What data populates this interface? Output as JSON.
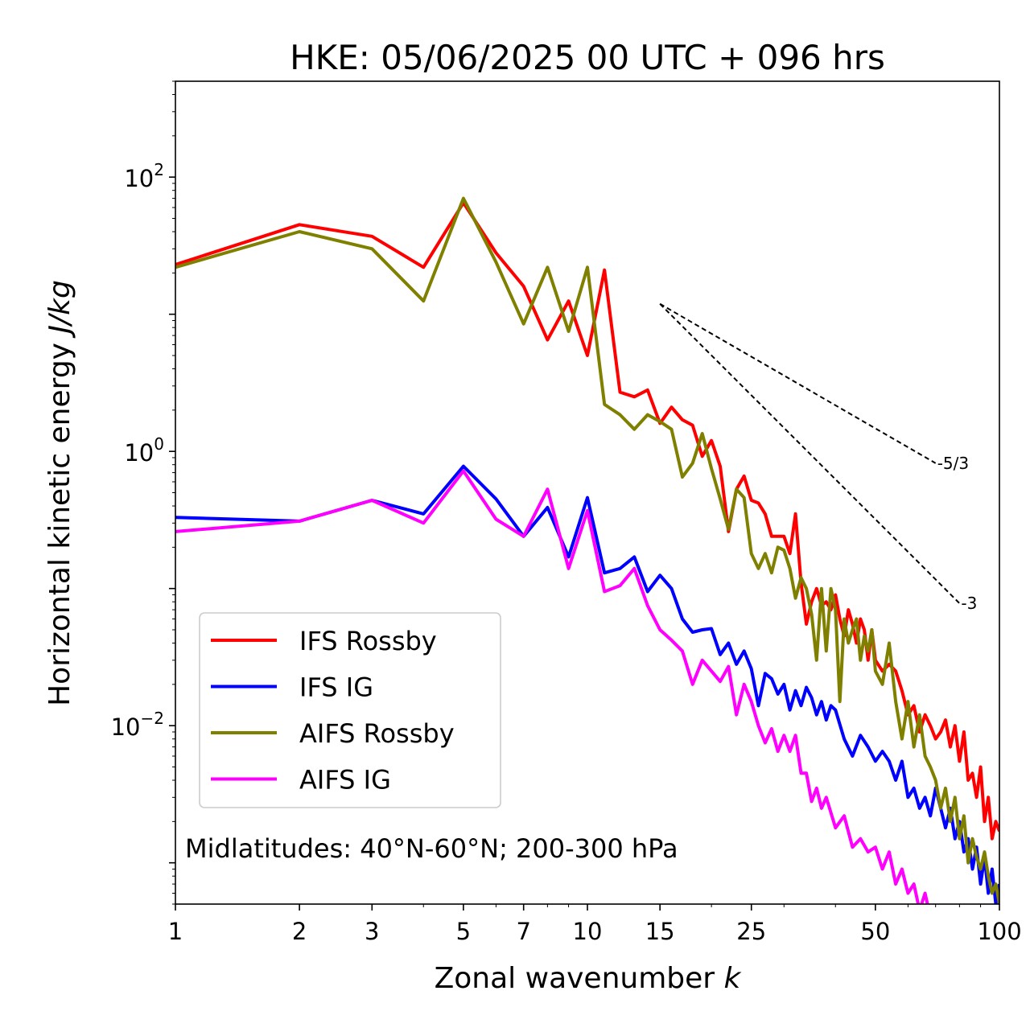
{
  "chart_data": {
    "type": "line",
    "title": "HKE: 05/06/2025 00 UTC + 096 hrs",
    "xlabel": "Zonal wavenumber",
    "xlabel_var": "k",
    "ylabel": "Horizontal kinetic energy",
    "ylabel_unit": "J/kg",
    "xscale": "log",
    "yscale": "log",
    "xlim": [
      1,
      100
    ],
    "ylim": [
      0.0005,
      500
    ],
    "x_ticks": [
      1,
      2,
      3,
      5,
      7,
      10,
      15,
      25,
      50,
      100
    ],
    "x_tick_labels": [
      "1",
      "2",
      "3",
      "5",
      "7",
      "10",
      "15",
      "25",
      "50",
      "100"
    ],
    "y_ticks": [
      100,
      1,
      0.01
    ],
    "y_tick_base": "10",
    "y_tick_exponents": [
      "2",
      "0",
      "−2"
    ],
    "grid": false,
    "legend_position": "lower-left",
    "annotation": "Midlatitudes: 40°N-60°N; 200-300 hPa",
    "reference_slopes": [
      {
        "label": "-5/3",
        "x": [
          15,
          70
        ],
        "y": [
          11.9,
          0.82
        ]
      },
      {
        "label": "-3",
        "x": [
          15,
          80
        ],
        "y": [
          11.9,
          0.078
        ]
      }
    ],
    "series": [
      {
        "name": "IFS Rossby",
        "color": "#ff0000",
        "x": [
          1,
          2,
          3,
          4,
          5,
          6,
          7,
          8,
          9,
          10,
          11,
          12,
          13,
          14,
          15,
          16,
          17,
          18,
          19,
          20,
          21,
          22,
          23,
          24,
          25,
          26,
          27,
          28,
          29,
          30,
          31,
          32,
          33,
          34,
          35,
          36,
          37,
          38,
          39,
          40,
          41,
          42,
          43,
          44,
          45,
          46,
          47,
          48,
          49,
          50,
          52,
          54,
          56,
          58,
          60,
          62,
          64,
          66,
          68,
          70,
          72,
          74,
          76,
          78,
          80,
          82,
          84,
          86,
          88,
          90,
          92,
          94,
          96,
          98,
          100
        ],
        "y": [
          23,
          45,
          37,
          22,
          65,
          28,
          16,
          6.5,
          12.5,
          5.0,
          21,
          2.7,
          2.5,
          2.8,
          1.6,
          2.1,
          1.7,
          1.55,
          0.92,
          1.2,
          0.78,
          0.26,
          0.53,
          0.66,
          0.44,
          0.42,
          0.35,
          0.24,
          0.24,
          0.24,
          0.18,
          0.35,
          0.11,
          0.055,
          0.08,
          0.1,
          0.075,
          0.08,
          0.07,
          0.09,
          0.06,
          0.045,
          0.07,
          0.055,
          0.04,
          0.06,
          0.05,
          0.03,
          0.05,
          0.03,
          0.025,
          0.028,
          0.025,
          0.018,
          0.012,
          0.014,
          0.009,
          0.012,
          0.01,
          0.008,
          0.009,
          0.011,
          0.007,
          0.01,
          0.0055,
          0.009,
          0.004,
          0.0045,
          0.003,
          0.005,
          0.002,
          0.003,
          0.0015,
          0.002,
          0.0017
        ]
      },
      {
        "name": "IFS IG",
        "color": "#0000ff",
        "x": [
          1,
          2,
          3,
          4,
          5,
          6,
          7,
          8,
          9,
          10,
          11,
          12,
          13,
          14,
          15,
          16,
          17,
          18,
          19,
          20,
          21,
          22,
          23,
          24,
          25,
          26,
          27,
          28,
          29,
          30,
          31,
          32,
          33,
          34,
          35,
          36,
          37,
          38,
          39,
          40,
          42,
          44,
          46,
          48,
          50,
          52,
          54,
          56,
          58,
          60,
          62,
          64,
          66,
          68,
          70,
          72,
          74,
          76,
          78,
          80,
          82,
          84,
          86,
          88,
          90,
          92,
          94,
          96,
          98,
          100
        ],
        "y": [
          0.33,
          0.31,
          0.44,
          0.35,
          0.78,
          0.45,
          0.24,
          0.39,
          0.17,
          0.46,
          0.13,
          0.14,
          0.17,
          0.095,
          0.125,
          0.1,
          0.06,
          0.048,
          0.05,
          0.051,
          0.033,
          0.04,
          0.028,
          0.035,
          0.026,
          0.014,
          0.024,
          0.022,
          0.017,
          0.02,
          0.013,
          0.018,
          0.014,
          0.019,
          0.016,
          0.012,
          0.015,
          0.011,
          0.014,
          0.013,
          0.008,
          0.006,
          0.0085,
          0.007,
          0.0055,
          0.0065,
          0.0055,
          0.004,
          0.0055,
          0.003,
          0.0035,
          0.0025,
          0.003,
          0.0022,
          0.0035,
          0.0025,
          0.0018,
          0.0025,
          0.0015,
          0.002,
          0.0012,
          0.0015,
          0.0009,
          0.0013,
          0.0007,
          0.0011,
          0.0006,
          0.0009,
          0.0005,
          0.0007
        ]
      },
      {
        "name": "AIFS Rossby",
        "color": "#808000",
        "x": [
          1,
          2,
          3,
          4,
          5,
          6,
          7,
          8,
          9,
          10,
          11,
          12,
          13,
          14,
          15,
          16,
          17,
          18,
          19,
          20,
          21,
          22,
          23,
          24,
          25,
          26,
          27,
          28,
          29,
          30,
          31,
          32,
          33,
          34,
          35,
          36,
          37,
          38,
          39,
          40,
          41,
          42,
          43,
          44,
          45,
          46,
          47,
          48,
          49,
          50,
          52,
          54,
          56,
          58,
          60,
          62,
          64,
          66,
          68,
          70,
          72,
          74,
          76,
          78,
          80,
          82,
          84,
          86,
          88,
          90,
          92,
          94,
          96,
          98,
          100
        ],
        "y": [
          22,
          40,
          30,
          12.5,
          70,
          24,
          8.5,
          22,
          7.5,
          22,
          2.2,
          1.85,
          1.45,
          1.85,
          1.65,
          1.45,
          0.65,
          0.82,
          1.35,
          0.75,
          0.45,
          0.27,
          0.53,
          0.46,
          0.18,
          0.14,
          0.18,
          0.13,
          0.2,
          0.19,
          0.14,
          0.085,
          0.12,
          0.1,
          0.065,
          0.03,
          0.1,
          0.035,
          0.1,
          0.07,
          0.015,
          0.06,
          0.04,
          0.05,
          0.06,
          0.03,
          0.045,
          0.035,
          0.05,
          0.025,
          0.02,
          0.04,
          0.015,
          0.008,
          0.015,
          0.007,
          0.012,
          0.006,
          0.005,
          0.004,
          0.0025,
          0.0035,
          0.002,
          0.003,
          0.0015,
          0.0022,
          0.001,
          0.0015,
          0.0011,
          0.0009,
          0.0012,
          0.0008,
          0.0006,
          0.0007,
          0.0005
        ]
      },
      {
        "name": "AIFS IG",
        "color": "#ff00ff",
        "x": [
          1,
          2,
          3,
          4,
          5,
          6,
          7,
          8,
          9,
          10,
          11,
          12,
          13,
          14,
          15,
          16,
          17,
          18,
          19,
          20,
          21,
          22,
          23,
          24,
          25,
          26,
          27,
          28,
          29,
          30,
          31,
          32,
          33,
          34,
          35,
          36,
          37,
          38,
          40,
          42,
          44,
          46,
          48,
          50,
          52,
          54,
          56,
          58,
          60,
          62,
          64,
          66,
          68,
          70
        ],
        "y": [
          0.26,
          0.31,
          0.44,
          0.3,
          0.72,
          0.32,
          0.24,
          0.53,
          0.14,
          0.37,
          0.095,
          0.105,
          0.14,
          0.075,
          0.05,
          0.042,
          0.035,
          0.02,
          0.03,
          0.025,
          0.021,
          0.027,
          0.012,
          0.02,
          0.015,
          0.01,
          0.0075,
          0.0095,
          0.0065,
          0.0085,
          0.0065,
          0.0085,
          0.0045,
          0.0045,
          0.0028,
          0.0035,
          0.0025,
          0.003,
          0.0018,
          0.0022,
          0.0013,
          0.0015,
          0.0012,
          0.0013,
          0.0009,
          0.0012,
          0.0007,
          0.0009,
          0.0006,
          0.0007,
          0.00045,
          0.0006,
          0.0004,
          0.0005
        ]
      }
    ]
  }
}
